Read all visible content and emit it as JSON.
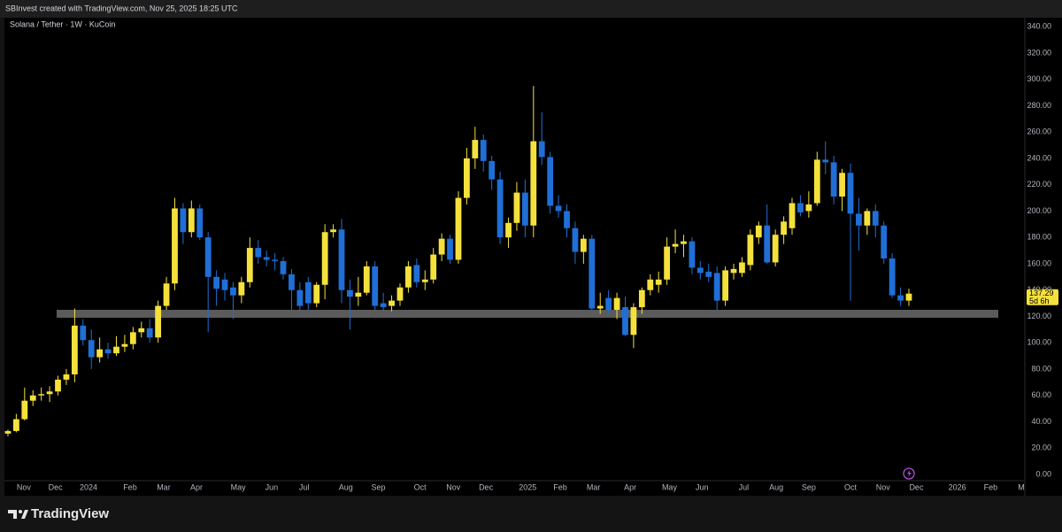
{
  "header": "SBInvest created with TradingView.com, Nov 25, 2025 18:25 UTC",
  "brand": "TradingView",
  "chart_data": {
    "type": "candlestick",
    "title": "Solana / Tether · 1W · KuCoin",
    "up_color": "#f5e13c",
    "down_color": "#1f6fd6",
    "categories": [
      null,
      null,
      null,
      null,
      null,
      null,
      null,
      null,
      null,
      null,
      null,
      null,
      null,
      null,
      null,
      null,
      null,
      null,
      null,
      null,
      null,
      null,
      null,
      null,
      null,
      null,
      null,
      null,
      null,
      null,
      null,
      null,
      null,
      null,
      null,
      null,
      null,
      null,
      null,
      null,
      null,
      null,
      null,
      null,
      null,
      null,
      null,
      null,
      null,
      null,
      null,
      null,
      null,
      null,
      null,
      null,
      null,
      null,
      null,
      null,
      null,
      null,
      null,
      null,
      null,
      null,
      null,
      null,
      null,
      null,
      null,
      null,
      null,
      null,
      null,
      null,
      null,
      null,
      null,
      null,
      null,
      null,
      null,
      null,
      null,
      null,
      null,
      null,
      null,
      null,
      null,
      null,
      null,
      null,
      null,
      null,
      null,
      null,
      null,
      null,
      null,
      null,
      null,
      null,
      null,
      null,
      null,
      null,
      null
    ],
    "open": [
      31,
      33,
      42,
      56,
      60,
      61,
      63,
      72,
      76,
      113,
      102,
      89,
      95,
      92,
      97,
      99,
      108,
      111,
      104,
      128,
      145,
      202,
      184,
      202,
      180,
      150,
      148,
      142,
      136,
      146,
      172,
      165,
      163,
      162,
      152,
      140,
      146,
      130,
      144,
      184,
      186,
      140,
      135,
      138,
      158,
      130,
      128,
      132,
      142,
      159,
      146,
      148,
      167,
      179,
      163,
      210,
      240,
      254,
      238,
      224,
      180,
      191,
      214,
      189,
      253,
      241,
      204,
      200,
      187,
      169,
      179,
      126,
      134,
      125,
      127,
      106,
      127,
      140,
      144,
      148,
      173,
      175,
      177,
      157,
      154,
      153,
      132,
      153,
      153,
      159,
      180,
      189,
      161,
      182,
      187,
      206,
      200,
      206,
      239,
      237,
      211,
      229,
      198,
      189,
      200,
      189,
      164,
      136,
      132
    ],
    "high": [
      34,
      46,
      66,
      64,
      66,
      67,
      75,
      80,
      126,
      118,
      110,
      104,
      100,
      105,
      106,
      112,
      116,
      118,
      132,
      150,
      210,
      206,
      208,
      205,
      184,
      155,
      153,
      146,
      150,
      180,
      178,
      170,
      168,
      165,
      156,
      146,
      150,
      146,
      190,
      190,
      194,
      148,
      150,
      162,
      162,
      138,
      136,
      145,
      162,
      164,
      155,
      172,
      183,
      182,
      215,
      248,
      264,
      258,
      242,
      230,
      195,
      222,
      224,
      295,
      275,
      245,
      212,
      205,
      192,
      182,
      182,
      138,
      140,
      138,
      135,
      130,
      142,
      152,
      154,
      180,
      186,
      182,
      180,
      162,
      160,
      158,
      158,
      160,
      165,
      186,
      192,
      205,
      186,
      196,
      210,
      212,
      215,
      245,
      253,
      242,
      232,
      236,
      210,
      202,
      205,
      192,
      168,
      142,
      141
    ],
    "low": [
      29,
      32,
      41,
      52,
      56,
      55,
      60,
      68,
      70,
      98,
      80,
      85,
      88,
      90,
      93,
      95,
      104,
      100,
      100,
      125,
      140,
      175,
      180,
      178,
      108,
      128,
      132,
      118,
      130,
      142,
      160,
      158,
      155,
      148,
      125,
      124,
      125,
      127,
      133,
      180,
      130,
      110,
      128,
      136,
      125,
      124,
      124,
      128,
      138,
      142,
      140,
      145,
      162,
      160,
      160,
      205,
      232,
      230,
      216,
      175,
      172,
      185,
      180,
      180,
      235,
      198,
      195,
      180,
      160,
      160,
      125,
      122,
      122,
      118,
      105,
      96,
      122,
      136,
      138,
      144,
      168,
      165,
      152,
      148,
      146,
      125,
      128,
      148,
      150,
      155,
      175,
      160,
      158,
      175,
      182,
      196,
      195,
      204,
      228,
      205,
      200,
      132,
      170,
      182,
      180,
      160,
      134,
      128,
      128
    ],
    "close": [
      33,
      42,
      56,
      60,
      61,
      63,
      72,
      76,
      113,
      102,
      89,
      95,
      92,
      97,
      99,
      108,
      111,
      104,
      128,
      145,
      202,
      184,
      202,
      180,
      150,
      141,
      140,
      136,
      146,
      172,
      165,
      163,
      162,
      152,
      140,
      128,
      130,
      144,
      184,
      186,
      140,
      135,
      138,
      158,
      128,
      127,
      132,
      142,
      158,
      146,
      148,
      167,
      179,
      163,
      210,
      240,
      254,
      238,
      224,
      180,
      191,
      214,
      189,
      253,
      241,
      204,
      200,
      187,
      169,
      179,
      126,
      128,
      125,
      134,
      106,
      127,
      140,
      148,
      148,
      173,
      175,
      177,
      157,
      153,
      150,
      132,
      155,
      156,
      161,
      182,
      189,
      161,
      182,
      192,
      206,
      199,
      205,
      239,
      237,
      211,
      229,
      198,
      189,
      200,
      189,
      164,
      136,
      132,
      137.29
    ],
    "zone": [
      119,
      125
    ],
    "zone_color": "#6b6b6b",
    "countdown": "5d 6h",
    "xlim": [
      -0.42,
      121.9
    ],
    "xticks": [
      {
        "value": 1.9,
        "label": "Nov"
      },
      {
        "value": 5.7,
        "label": "Dec"
      },
      {
        "value": 9.66,
        "label": "2024"
      },
      {
        "value": 14.64,
        "label": "Feb"
      },
      {
        "value": 18.67,
        "label": "Mar"
      },
      {
        "value": 22.6,
        "label": "Apr"
      },
      {
        "value": 27.6,
        "label": "May"
      },
      {
        "value": 31.6,
        "label": "Jun"
      },
      {
        "value": 35.5,
        "label": "Jul"
      },
      {
        "value": 40.5,
        "label": "Aug"
      },
      {
        "value": 44.4,
        "label": "Sep"
      },
      {
        "value": 49.4,
        "label": "Oct"
      },
      {
        "value": 53.4,
        "label": "Nov"
      },
      {
        "value": 57.3,
        "label": "Dec"
      },
      {
        "value": 62.3,
        "label": "2025"
      },
      {
        "value": 66.2,
        "label": "Feb"
      },
      {
        "value": 70.2,
        "label": "Mar"
      },
      {
        "value": 74.6,
        "label": "Apr"
      },
      {
        "value": 79.3,
        "label": "May"
      },
      {
        "value": 83.2,
        "label": "Jun"
      },
      {
        "value": 88.2,
        "label": "Jul"
      },
      {
        "value": 92.1,
        "label": "Aug"
      },
      {
        "value": 96.0,
        "label": "Sep"
      },
      {
        "value": 101.0,
        "label": "Oct"
      },
      {
        "value": 104.9,
        "label": "Nov"
      },
      {
        "value": 108.9,
        "label": "Dec"
      },
      {
        "value": 113.8,
        "label": "2026"
      },
      {
        "value": 117.8,
        "label": "Feb"
      },
      {
        "value": 121.9,
        "label": "Mar"
      }
    ],
    "ylim": [
      -4.7,
      346.8
    ],
    "yticks": [
      {
        "value": 0,
        "label": "0.00"
      },
      {
        "value": 20,
        "label": "20.00"
      },
      {
        "value": 40,
        "label": "40.00"
      },
      {
        "value": 60,
        "label": "60.00"
      },
      {
        "value": 80,
        "label": "80.00"
      },
      {
        "value": 100,
        "label": "100.00"
      },
      {
        "value": 120,
        "label": "120.00"
      },
      {
        "value": 140,
        "label": "140.00"
      },
      {
        "value": 160,
        "label": "160.00"
      },
      {
        "value": 180,
        "label": "180.00"
      },
      {
        "value": 200,
        "label": "200.00"
      },
      {
        "value": 220,
        "label": "220.00"
      },
      {
        "value": 240,
        "label": "240.00"
      },
      {
        "value": 260,
        "label": "260.00"
      },
      {
        "value": 280,
        "label": "280.00"
      },
      {
        "value": 300,
        "label": "300.00"
      },
      {
        "value": 320,
        "label": "320.00"
      },
      {
        "value": 340,
        "label": "340.00"
      }
    ],
    "grid": false
  }
}
